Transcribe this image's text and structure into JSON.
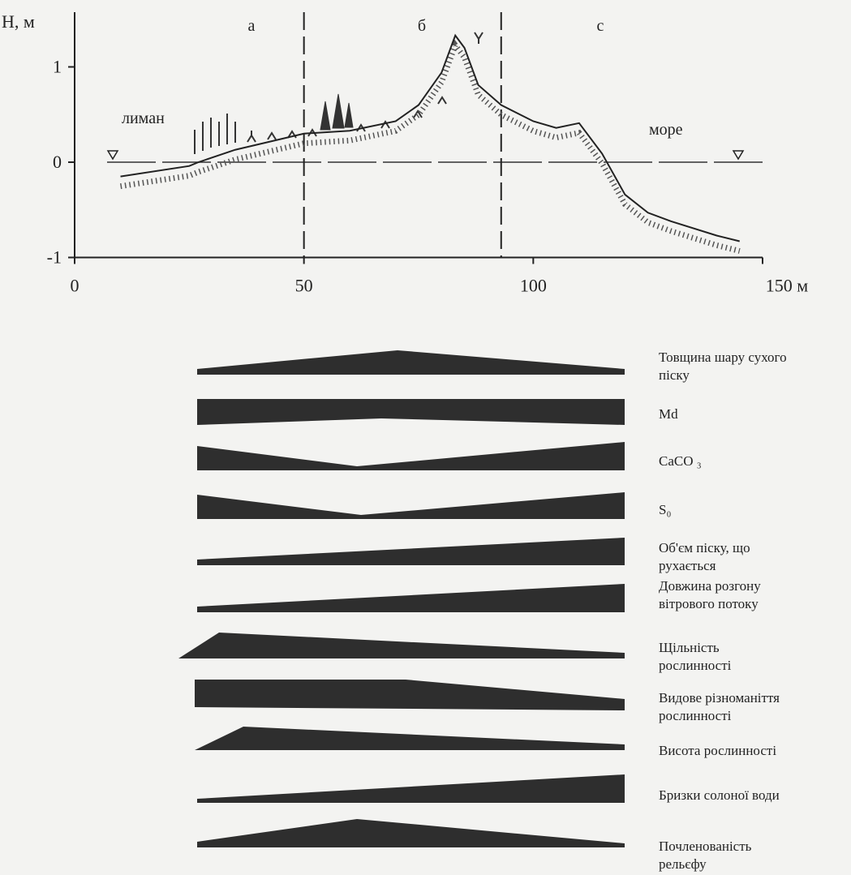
{
  "chart_data": {
    "type": "line",
    "y_label": "H, м",
    "x": [
      10,
      25,
      27,
      35,
      50,
      60,
      70,
      75,
      80,
      83,
      85,
      88,
      93,
      100,
      105,
      110,
      115,
      120,
      125,
      130,
      140,
      145
    ],
    "series": [
      {
        "color": "#222222",
        "values": [
          -0.15,
          -0.04,
          0.0,
          0.13,
          0.3,
          0.33,
          0.43,
          0.6,
          0.94,
          1.33,
          1.2,
          0.81,
          0.6,
          0.43,
          0.36,
          0.41,
          0.09,
          -0.34,
          -0.53,
          -0.62,
          -0.77,
          -0.83
        ]
      }
    ],
    "xlim": [
      0,
      150
    ],
    "ylim": [
      -1,
      1
    ],
    "xticks": [
      0,
      50,
      100,
      {
        "value": 150,
        "label": "150 м"
      }
    ],
    "yticks": [
      1,
      0,
      -1
    ],
    "zone_bounds": [
      50,
      93
    ],
    "zones": [
      "а",
      "б",
      "с"
    ],
    "annotations": [
      "лиман",
      "море"
    ]
  },
  "trends": {
    "rows": [
      {
        "label_lines": [
          "Товщина шару сухого",
          "піску"
        ]
      },
      {
        "label_lines": [
          "Md"
        ]
      },
      {
        "label_lines": [
          "CaCO ₃"
        ]
      },
      {
        "label_lines": [
          "S₀"
        ]
      },
      {
        "label_lines": [
          "Об'єм піску, що",
          "рухається"
        ]
      },
      {
        "label_lines": [
          "Довжина розгону",
          "вітрового потоку"
        ]
      },
      {
        "label_lines": [
          "Щільність",
          "рослинності"
        ]
      },
      {
        "label_lines": [
          "Видове різноманіття",
          "рослинності"
        ]
      },
      {
        "label_lines": [
          "Висота рослинності"
        ]
      },
      {
        "label_lines": [
          "Бризки солоної води"
        ]
      },
      {
        "label_lines": [
          "Почленованість",
          "рельєфу"
        ]
      }
    ]
  }
}
